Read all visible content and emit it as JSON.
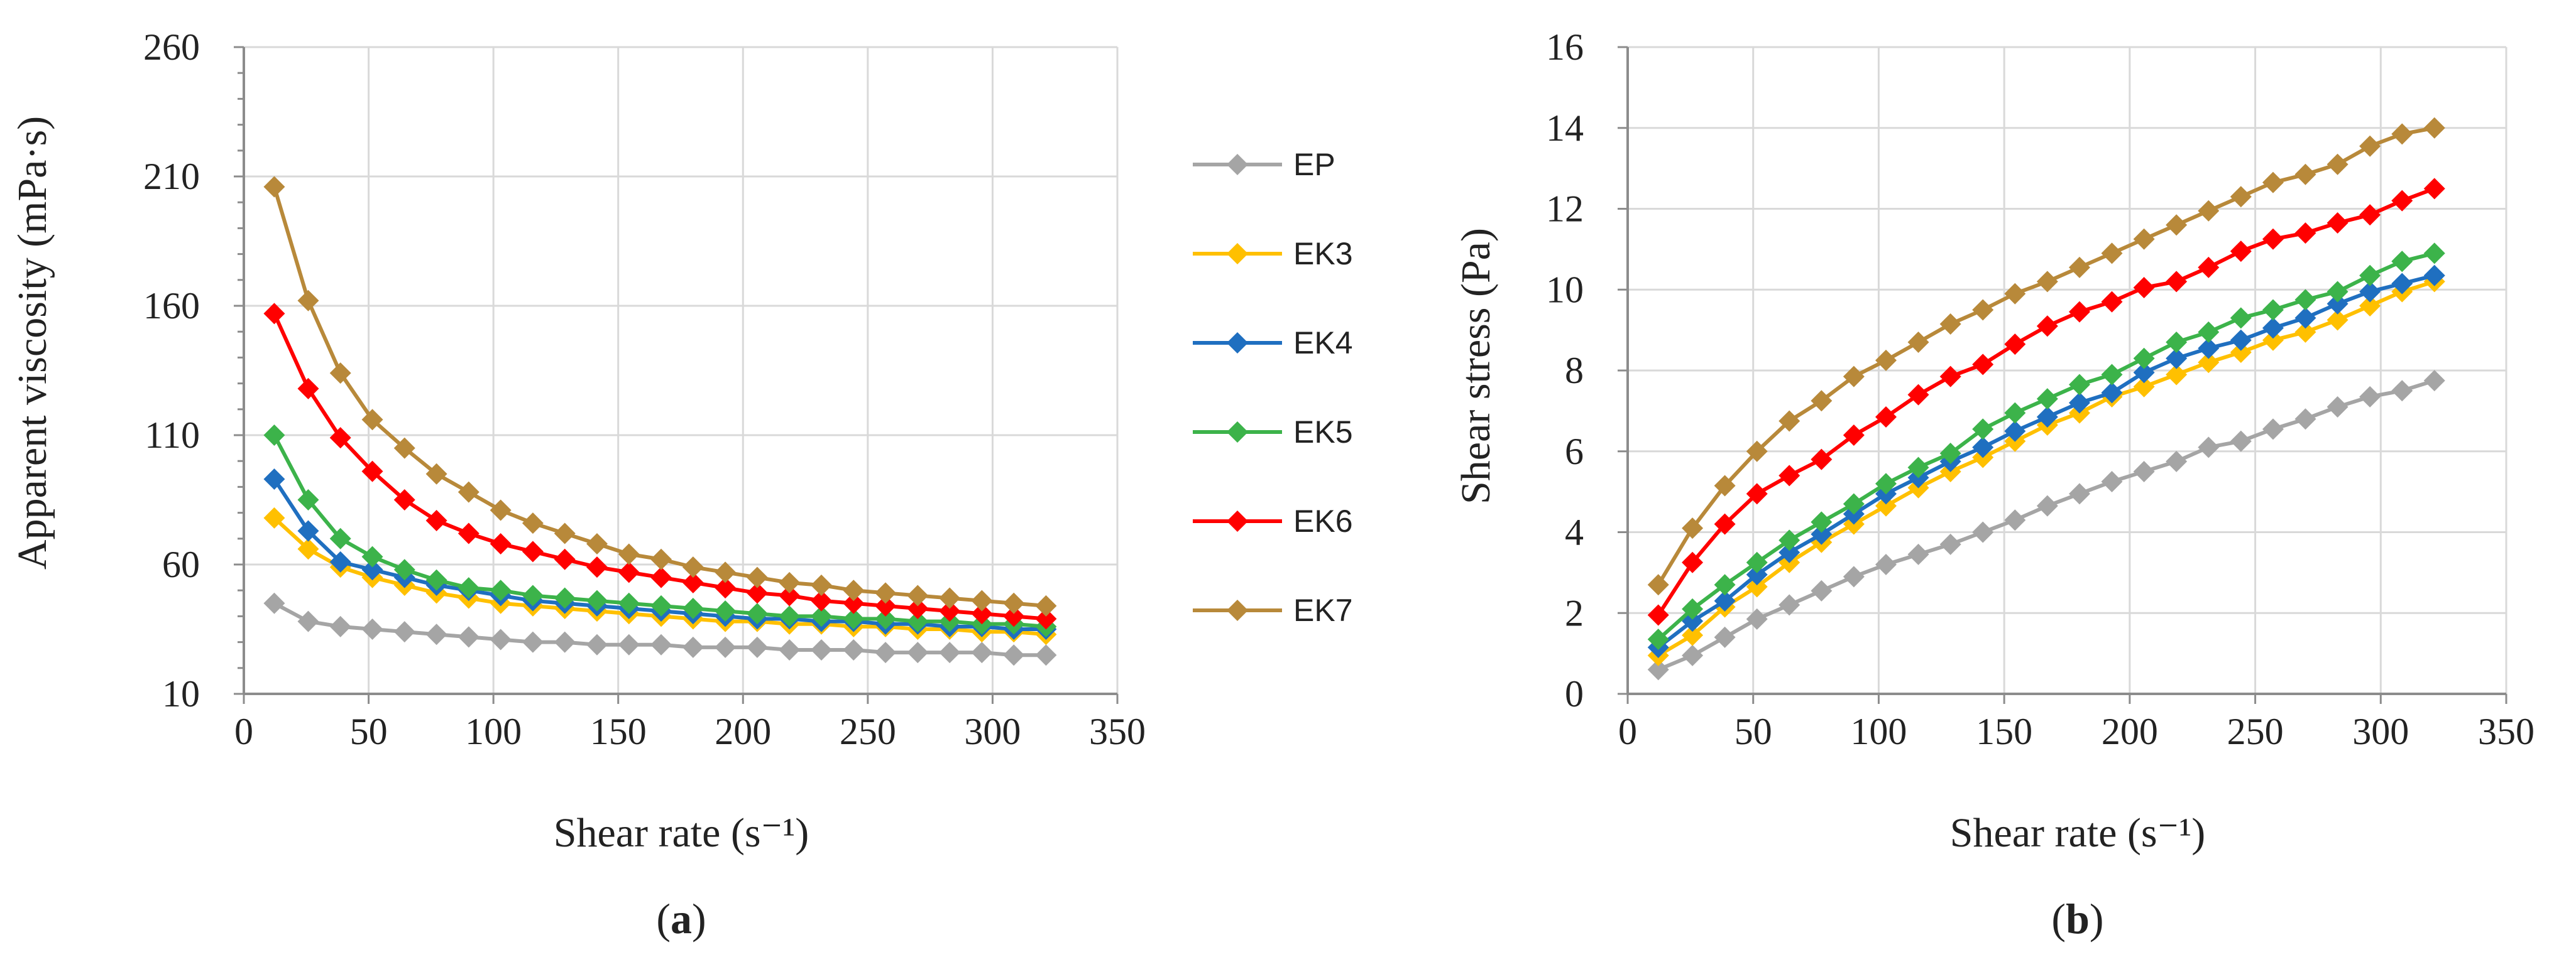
{
  "figure_labels": {
    "a_open": "(",
    "a_letter": "a",
    "a_close": ")",
    "b_open": "(",
    "b_letter": "b",
    "b_close": ")"
  },
  "legend": {
    "items": [
      {
        "name": "EP",
        "color": "#a5a5a5"
      },
      {
        "name": "EK3",
        "color": "#ffc000"
      },
      {
        "name": "EK4",
        "color": "#1f6fc0"
      },
      {
        "name": "EK5",
        "color": "#3cb34a"
      },
      {
        "name": "EK6",
        "color": "#ff0000"
      },
      {
        "name": "EK7",
        "color": "#b8893a"
      }
    ]
  },
  "chart_data": [
    {
      "id": "a",
      "type": "line",
      "title": "",
      "xlabel": "Shear rate (s⁻¹)",
      "ylabel": "Apparent viscosity (mPa·s)",
      "xlim": [
        0,
        350
      ],
      "ylim": [
        10,
        260
      ],
      "xticks": [
        "0",
        "50",
        "100",
        "150",
        "200",
        "250",
        "300",
        "350"
      ],
      "yticks": [
        "10",
        "60",
        "110",
        "160",
        "210",
        "260"
      ],
      "x": [
        12.2,
        25.8,
        38.7,
        51.5,
        64.4,
        77.2,
        90.1,
        102.9,
        115.8,
        128.6,
        141.5,
        154.3,
        167.2,
        180.0,
        192.9,
        205.7,
        218.6,
        231.4,
        244.3,
        257.1,
        270.0,
        282.8,
        295.7,
        308.5,
        321.4
      ],
      "series": [
        {
          "name": "EP",
          "values": [
            45,
            38,
            36,
            35,
            34,
            33,
            32,
            31,
            30,
            30,
            29,
            29,
            29,
            28,
            28,
            28,
            27,
            27,
            27,
            26,
            26,
            26,
            26,
            25,
            25
          ]
        },
        {
          "name": "EK3",
          "values": [
            78,
            66,
            59,
            55,
            52,
            49,
            47,
            45,
            44,
            43,
            42,
            41,
            40,
            39,
            38,
            38,
            37,
            37,
            36,
            36,
            35,
            35,
            34,
            34,
            33
          ]
        },
        {
          "name": "EK4",
          "values": [
            93,
            73,
            61,
            58,
            55,
            52,
            50,
            48,
            46,
            45,
            44,
            43,
            42,
            41,
            40,
            39,
            39,
            38,
            38,
            37,
            37,
            36,
            36,
            35,
            35
          ]
        },
        {
          "name": "EK5",
          "values": [
            110,
            85,
            70,
            63,
            58,
            54,
            51,
            50,
            48,
            47,
            46,
            45,
            44,
            43,
            42,
            41,
            40,
            40,
            39,
            39,
            38,
            38,
            37,
            37,
            36
          ]
        },
        {
          "name": "EK6",
          "values": [
            157,
            128,
            109,
            96,
            85,
            77,
            72,
            68,
            65,
            62,
            59,
            57,
            55,
            53,
            51,
            49,
            48,
            46,
            45,
            44,
            43,
            42,
            41,
            40,
            39
          ]
        },
        {
          "name": "EK7",
          "values": [
            206,
            162,
            134,
            116,
            105,
            95,
            88,
            81,
            76,
            72,
            68,
            64,
            62,
            59,
            57,
            55,
            53,
            52,
            50,
            49,
            48,
            47,
            46,
            45,
            44
          ]
        }
      ]
    },
    {
      "id": "b",
      "type": "line",
      "title": "",
      "xlabel": "Shear rate (s⁻¹)",
      "ylabel": "Shear stress (Pa)",
      "xlim": [
        0,
        350
      ],
      "ylim": [
        0,
        16
      ],
      "xticks": [
        "0",
        "50",
        "100",
        "150",
        "200",
        "250",
        "300",
        "350"
      ],
      "yticks": [
        "0",
        "2",
        "4",
        "6",
        "8",
        "10",
        "12",
        "14",
        "16"
      ],
      "x": [
        12.2,
        25.8,
        38.7,
        51.5,
        64.4,
        77.2,
        90.1,
        102.9,
        115.8,
        128.6,
        141.5,
        154.3,
        167.2,
        180.0,
        192.9,
        205.7,
        218.6,
        231.4,
        244.3,
        257.1,
        270.0,
        282.8,
        295.7,
        308.5,
        321.4
      ],
      "series": [
        {
          "name": "EP",
          "values": [
            0.6,
            0.95,
            1.4,
            1.85,
            2.2,
            2.55,
            2.9,
            3.2,
            3.45,
            3.7,
            4.0,
            4.3,
            4.65,
            4.95,
            5.25,
            5.5,
            5.75,
            6.1,
            6.25,
            6.55,
            6.8,
            7.1,
            7.35,
            7.5,
            7.75
          ]
        },
        {
          "name": "EK3",
          "values": [
            0.95,
            1.45,
            2.15,
            2.65,
            3.25,
            3.75,
            4.2,
            4.65,
            5.1,
            5.5,
            5.85,
            6.25,
            6.65,
            6.95,
            7.35,
            7.6,
            7.9,
            8.2,
            8.45,
            8.75,
            8.95,
            9.25,
            9.6,
            9.95,
            10.2
          ]
        },
        {
          "name": "EK4",
          "values": [
            1.15,
            1.8,
            2.3,
            2.95,
            3.5,
            3.95,
            4.45,
            4.95,
            5.35,
            5.75,
            6.1,
            6.5,
            6.85,
            7.2,
            7.45,
            7.95,
            8.3,
            8.55,
            8.75,
            9.05,
            9.3,
            9.65,
            9.95,
            10.15,
            10.35
          ]
        },
        {
          "name": "EK5",
          "values": [
            1.35,
            2.1,
            2.7,
            3.25,
            3.8,
            4.25,
            4.7,
            5.2,
            5.6,
            5.95,
            6.55,
            6.95,
            7.3,
            7.65,
            7.9,
            8.3,
            8.7,
            8.95,
            9.3,
            9.5,
            9.75,
            9.95,
            10.35,
            10.7,
            10.9
          ]
        },
        {
          "name": "EK6",
          "values": [
            1.95,
            3.25,
            4.2,
            4.95,
            5.4,
            5.8,
            6.4,
            6.85,
            7.4,
            7.85,
            8.15,
            8.65,
            9.1,
            9.45,
            9.7,
            10.05,
            10.2,
            10.55,
            10.95,
            11.25,
            11.4,
            11.65,
            11.85,
            12.2,
            12.5
          ]
        },
        {
          "name": "EK7",
          "values": [
            2.7,
            4.1,
            5.15,
            6.0,
            6.75,
            7.25,
            7.85,
            8.25,
            8.7,
            9.15,
            9.5,
            9.9,
            10.2,
            10.55,
            10.9,
            11.25,
            11.6,
            11.95,
            12.3,
            12.65,
            12.85,
            13.1,
            13.55,
            13.85,
            14.0
          ]
        }
      ]
    }
  ]
}
